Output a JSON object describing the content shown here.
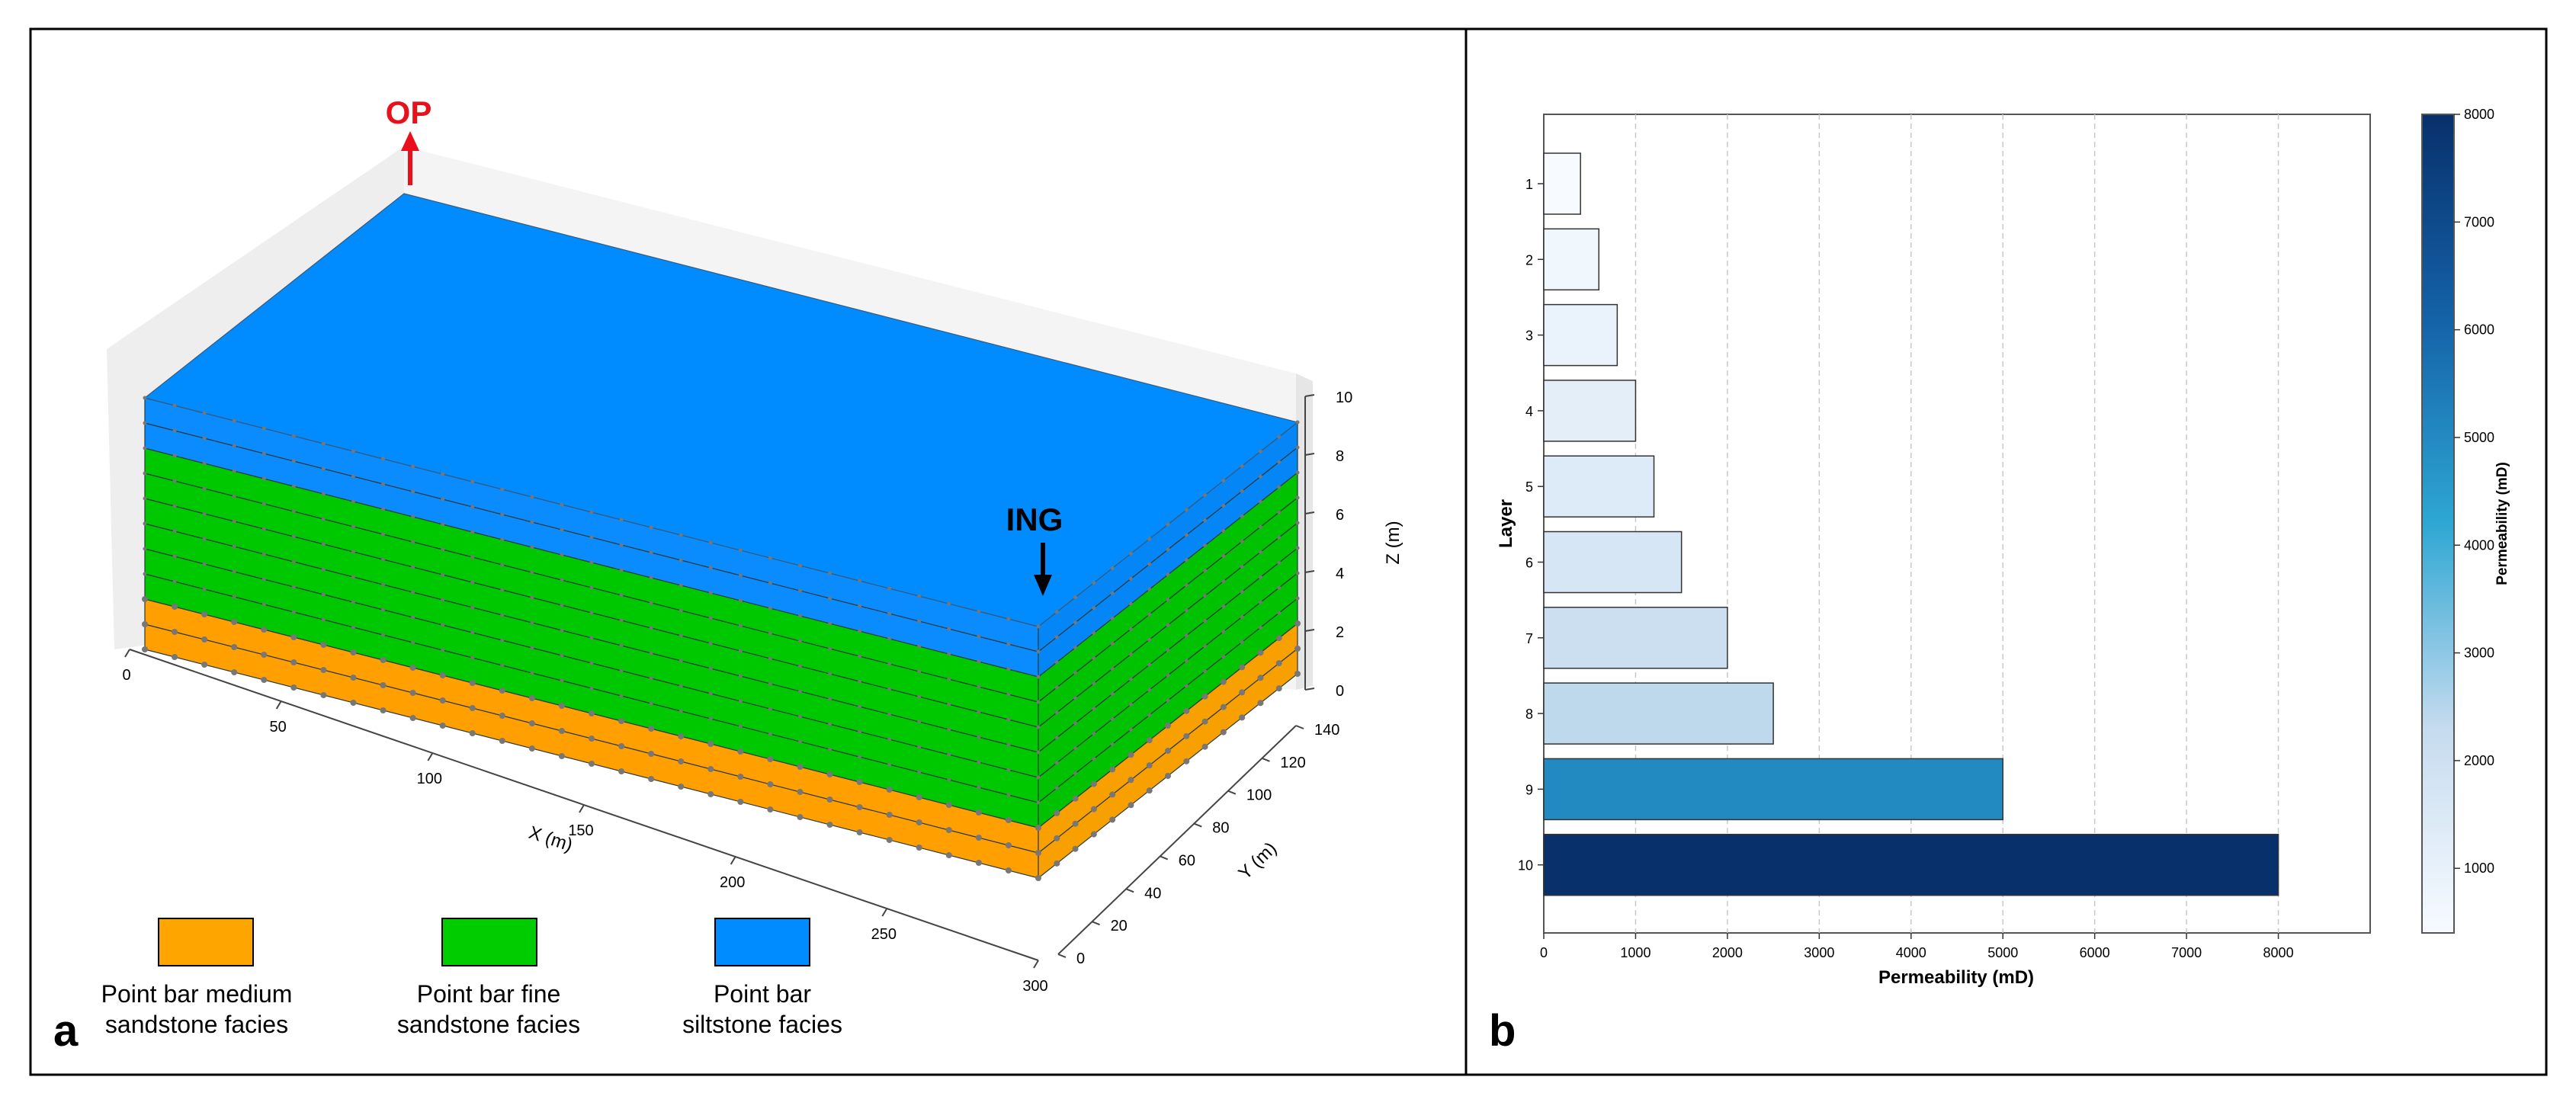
{
  "panels": {
    "a": {
      "letter": "a"
    },
    "b": {
      "letter": "b"
    }
  },
  "wells": {
    "op": {
      "label": "OP",
      "color": "#e8101a"
    },
    "ing": {
      "label": "ING",
      "color": "#000000"
    }
  },
  "legend": [
    {
      "line1": "Point bar medium",
      "line2": "sandstone facies",
      "color": "#ffa500"
    },
    {
      "line1": "Point bar fine",
      "line2": "sandstone facies",
      "color": "#00cc00"
    },
    {
      "line1": "Point bar",
      "line2": "siltstone facies",
      "color": "#008cff"
    }
  ],
  "model3d": {
    "xlabel": "X (m)",
    "ylabel": "Y (m)",
    "zlabel": "Z (m)",
    "x_ticks": [
      "0",
      "50",
      "100",
      "150",
      "200",
      "250",
      "300"
    ],
    "y_ticks": [
      "0",
      "20",
      "40",
      "60",
      "80",
      "100",
      "120",
      "140"
    ],
    "z_ticks": [
      "0",
      "2",
      "4",
      "6",
      "8",
      "10"
    ],
    "layers": [
      {
        "facies": "medium sandstone"
      },
      {
        "facies": "medium sandstone"
      },
      {
        "facies": "fine sandstone"
      },
      {
        "facies": "fine sandstone"
      },
      {
        "facies": "fine sandstone"
      },
      {
        "facies": "fine sandstone"
      },
      {
        "facies": "fine sandstone"
      },
      {
        "facies": "fine sandstone"
      },
      {
        "facies": "siltstone"
      },
      {
        "facies": "siltstone"
      }
    ]
  },
  "chart_data": {
    "type": "bar",
    "orientation": "horizontal",
    "categories": [
      "1",
      "2",
      "3",
      "4",
      "5",
      "6",
      "7",
      "8",
      "9",
      "10"
    ],
    "values": [
      400,
      600,
      800,
      1000,
      1200,
      1500,
      2000,
      2500,
      5000,
      8000
    ],
    "xlabel": "Permeability (mD)",
    "ylabel": "Layer",
    "xlim": [
      0,
      9000
    ],
    "x_ticks": [
      "0",
      "1000",
      "2000",
      "3000",
      "4000",
      "5000",
      "6000",
      "7000",
      "8000"
    ],
    "grid": "vertical dashed",
    "colorbar": {
      "label": "Permeability (mD)",
      "range": [
        400,
        8000
      ],
      "ticks": [
        "1000",
        "2000",
        "3000",
        "4000",
        "5000",
        "6000",
        "7000",
        "8000"
      ]
    }
  }
}
